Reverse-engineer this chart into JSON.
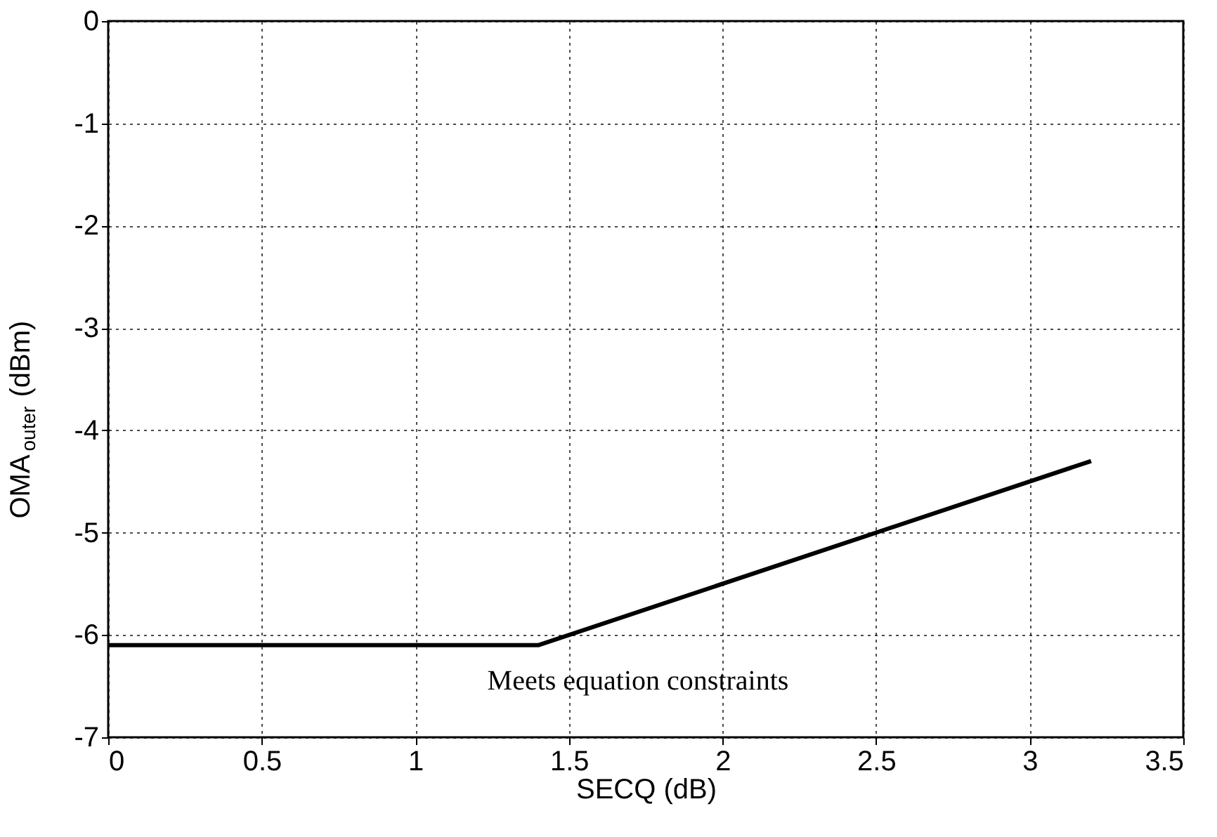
{
  "chart_data": {
    "type": "line",
    "xlabel": "SECQ (dB)",
    "ylabel": "OMA$_{outer}$  (dBm)",
    "x": [
      0,
      1.4,
      3.2
    ],
    "series": [
      {
        "color": "#000000",
        "values": [
          -6.1,
          -6.1,
          -4.3
        ]
      }
    ],
    "xlim": [
      0,
      3.5
    ],
    "xticks": [
      0,
      0.5,
      1,
      1.5,
      2,
      2.5,
      3,
      3.5
    ],
    "ylim": [
      -7,
      0
    ],
    "yticks": [
      -7,
      -6,
      -5,
      -4,
      -3,
      -2,
      -1,
      0
    ],
    "grid": true,
    "line_style": "solid",
    "marker": "none",
    "annotations": [
      "Meets equation constraints"
    ]
  }
}
